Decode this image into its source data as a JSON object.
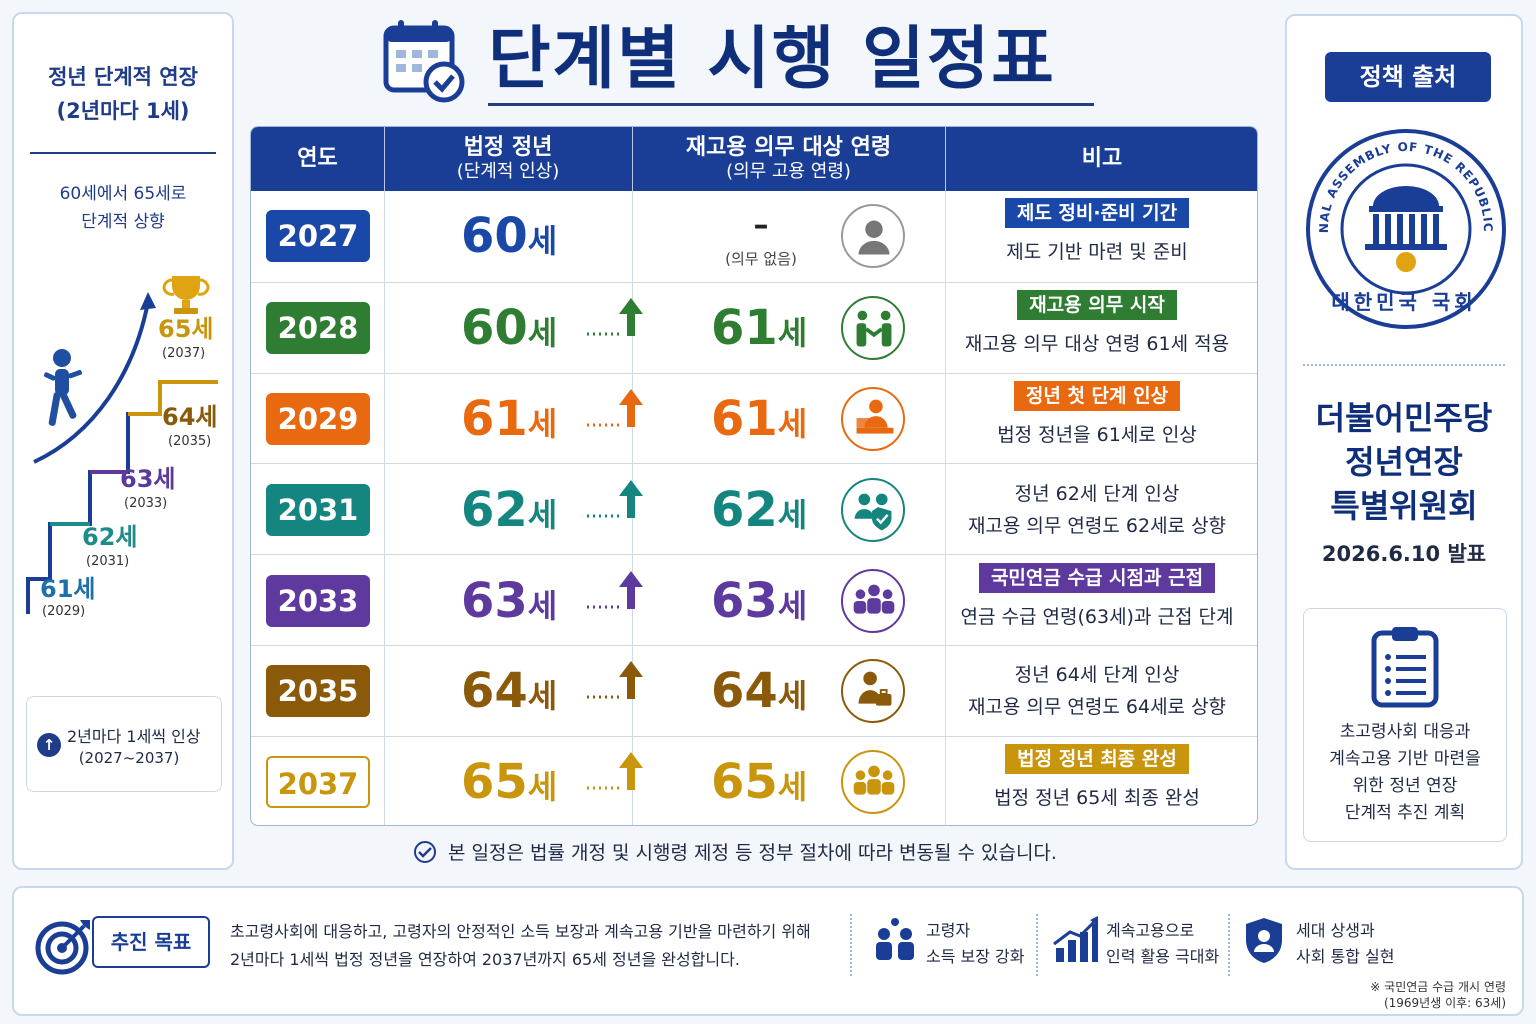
{
  "header": {
    "title": "단계별 시행 일정표"
  },
  "left_panel": {
    "title_line1": "정년 단계적 연장",
    "title_line2": "(2년마다 1세)",
    "subtitle_line1": "60세에서 65세로",
    "subtitle_line2": "단계적 상향",
    "steps": [
      {
        "label": "61세",
        "year": "(2029)",
        "color": "#1f6fa8"
      },
      {
        "label": "62세",
        "year": "(2031)",
        "color": "#1e8a8a"
      },
      {
        "label": "63세",
        "year": "(2033)",
        "color": "#5b3a9c"
      },
      {
        "label": "64세",
        "year": "(2035)",
        "color": "#8a5a0a"
      },
      {
        "label": "65세",
        "year": "(2037)",
        "color": "#c9950c"
      }
    ],
    "note_line1": "2년마다 1세씩 인상",
    "note_line2": "(2027~2037)"
  },
  "table": {
    "headers": {
      "year": "연도",
      "legal_main": "법정 정년",
      "legal_sub": "(단계적 인상)",
      "rehire_main": "재고용 의무 대상 연령",
      "rehire_sub": "(의무 고용 연령)",
      "note": "비고"
    },
    "rows": [
      {
        "year": "2027",
        "legal_num": "60",
        "legal_unit": "세",
        "rehire_num": "",
        "rehire_unit": "",
        "no_duty_dash": "–",
        "no_duty_text": "(의무 없음)",
        "color": "#1a48a8",
        "icon": "person-icon",
        "badge": "제도 정비·준비 기간",
        "note_line1": "제도 기반 마련 및 준비",
        "note_line2": ""
      },
      {
        "year": "2028",
        "legal_num": "60",
        "legal_unit": "세",
        "rehire_num": "61",
        "rehire_unit": "세",
        "color": "#2e7d32",
        "icon": "handshake-icon",
        "badge": "재고용 의무 시작",
        "note_line1": "재고용 의무 대상 연령 61세 적용",
        "note_line2": ""
      },
      {
        "year": "2029",
        "legal_num": "61",
        "legal_unit": "세",
        "rehire_num": "61",
        "rehire_unit": "세",
        "color": "#e8690f",
        "icon": "office-worker-icon",
        "badge": "정년 첫 단계 인상",
        "note_line1": "법정 정년을 61세로 인상",
        "note_line2": ""
      },
      {
        "year": "2031",
        "legal_num": "62",
        "legal_unit": "세",
        "rehire_num": "62",
        "rehire_unit": "세",
        "color": "#14857f",
        "icon": "shield-people-icon",
        "badge": "",
        "note_line1": "정년 62세 단계 인상",
        "note_line2": "재고용 의무 연령도 62세로 상향"
      },
      {
        "year": "2033",
        "legal_num": "63",
        "legal_unit": "세",
        "rehire_num": "63",
        "rehire_unit": "세",
        "color": "#5e3a9e",
        "icon": "group-icon",
        "badge": "국민연금 수급 시점과 근접",
        "note_line1": "연금 수급 연령(63세)과 근접 단계",
        "note_line2": ""
      },
      {
        "year": "2035",
        "legal_num": "64",
        "legal_unit": "세",
        "rehire_num": "64",
        "rehire_unit": "세",
        "color": "#8a5a0a",
        "icon": "worker-briefcase-icon",
        "badge": "",
        "note_line1": "정년 64세 단계 인상",
        "note_line2": "재고용 의무 연령도 64세로 상향"
      },
      {
        "year": "2037",
        "legal_num": "65",
        "legal_unit": "세",
        "rehire_num": "65",
        "rehire_unit": "세",
        "color": "#c9950c",
        "icon": "group-icon",
        "badge": "법정 정년 최종 완성",
        "note_line1": "법정 정년 65세 최종 완성",
        "note_line2": ""
      }
    ]
  },
  "disclaimer": "본 일정은 법률 개정 및 시행령 제정 등 정부 절차에 따라 변동될 수 있습니다.",
  "right_panel": {
    "badge": "정책 출처",
    "seal_ring_text": "THE NATIONAL ASSEMBLY OF THE REPUBLIC OF KOREA",
    "seal_name": "대한민국 국회",
    "party_line1": "더불어민주당",
    "party_line2": "정년연장",
    "party_line3": "특별위원회",
    "date": "2026.6.10 발표",
    "box_lines": [
      "초고령사회 대응과",
      "계속고용 기반 마련을",
      "위한 정년 연장",
      "단계적 추진 계획"
    ]
  },
  "bottom": {
    "goal_label": "추진 목표",
    "goal_line1": "초고령사회에 대응하고, 고령자의 안정적인 소득 보장과 계속고용 기반을 마련하기 위해",
    "goal_line2": "2년마다 1세씩 법정 정년을 연장하여 2037년까지 65세 정년을 완성합니다.",
    "features": [
      {
        "icon": "elderly-people-icon",
        "line1": "고령자",
        "line2": "소득 보장 강화"
      },
      {
        "icon": "growth-chart-icon",
        "line1": "계속고용으로",
        "line2": "인력 활용 극대화"
      },
      {
        "icon": "shield-person-icon",
        "line1": "세대 상생과",
        "line2": "사회 통합 실현"
      }
    ],
    "footnote_line1": "※ 국민연금 수급 개시 연령",
    "footnote_line2": "(1969년생 이후: 63세)"
  },
  "colors": {
    "navy": "#1a3d96",
    "title": "#0f2f7a"
  }
}
